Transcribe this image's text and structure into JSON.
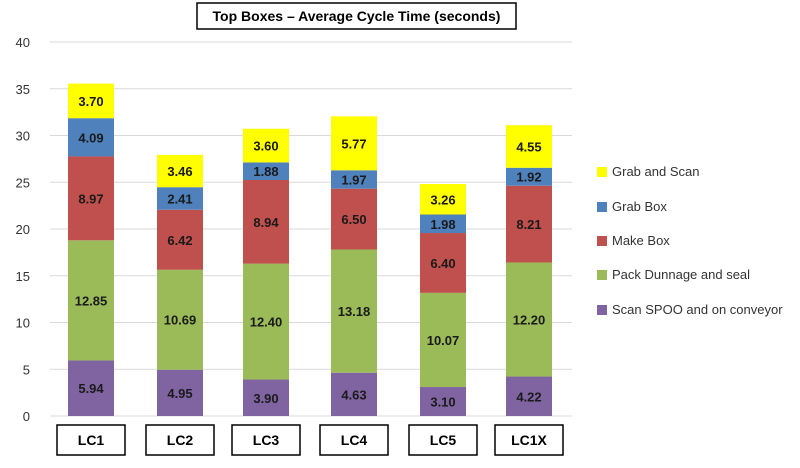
{
  "chart_data": {
    "type": "bar",
    "stacked": true,
    "title": "Top Boxes – Average Cycle Time (seconds)",
    "xlabel": "",
    "ylabel": "",
    "ylim": [
      0,
      40
    ],
    "yticks": [
      0,
      5,
      10,
      15,
      20,
      25,
      30,
      35,
      40
    ],
    "grid": true,
    "legend_position": "right",
    "categories": [
      "LC1",
      "LC2",
      "LC3",
      "LC4",
      "LC5",
      "LC1X"
    ],
    "series": [
      {
        "name": "Scan SPOO and on conveyor",
        "color": "#8064a2",
        "values": [
          5.94,
          4.95,
          3.9,
          4.63,
          3.1,
          4.22
        ],
        "labels": [
          "5.94",
          "4.95",
          "3.90",
          "4.63",
          "3.10",
          "4.22"
        ]
      },
      {
        "name": "Pack Dunnage and seal",
        "color": "#9bbb59",
        "values": [
          12.85,
          10.69,
          12.4,
          13.18,
          10.07,
          12.2
        ],
        "labels": [
          "12.85",
          "10.69",
          "12.40",
          "13.18",
          "10.07",
          "12.20"
        ]
      },
      {
        "name": "Make Box",
        "color": "#c0504d",
        "values": [
          8.97,
          6.42,
          8.94,
          6.5,
          6.4,
          8.21
        ],
        "labels": [
          "8.97",
          "6.42",
          "8.94",
          "6.50",
          "6.40",
          "8.21"
        ]
      },
      {
        "name": "Grab Box",
        "color": "#4f81bd",
        "values": [
          4.09,
          2.41,
          1.88,
          1.97,
          1.98,
          1.92
        ],
        "labels": [
          "4.09",
          "2.41",
          "1.88",
          "1.97",
          "1.98",
          "1.92"
        ]
      },
      {
        "name": "Grab and Scan",
        "color": "#ffff00",
        "values": [
          3.7,
          3.46,
          3.6,
          5.77,
          3.26,
          4.55
        ],
        "labels": [
          "3.70",
          "3.46",
          "3.60",
          "5.77",
          "3.26",
          "4.55"
        ]
      }
    ],
    "legend_order": [
      "Grab and Scan",
      "Grab Box",
      "Make Box",
      "Pack Dunnage and seal",
      "Scan SPOO and on conveyor"
    ]
  }
}
